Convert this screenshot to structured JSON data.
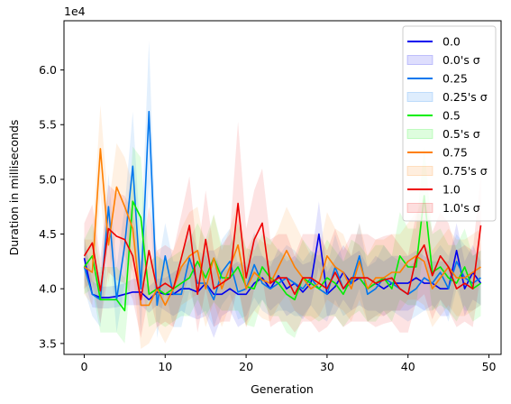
{
  "chart_data": {
    "type": "line",
    "title": "",
    "xlabel": "Generation",
    "ylabel": "Duration in milliseconds",
    "y_offset_label": "1e4",
    "xlim": [
      -2.5,
      51.5
    ],
    "ylim": [
      3.4,
      6.45
    ],
    "xticks": [
      0,
      10,
      20,
      30,
      40,
      50
    ],
    "yticks": [
      3.5,
      4.0,
      4.5,
      5.0,
      5.5,
      6.0
    ],
    "ytick_labels": [
      "3.5",
      "4.0",
      "4.5",
      "5.0",
      "5.5",
      "6.0"
    ],
    "legend_position": "upper-right",
    "x": [
      0,
      1,
      2,
      3,
      4,
      5,
      6,
      7,
      8,
      9,
      10,
      11,
      12,
      13,
      14,
      15,
      16,
      17,
      18,
      19,
      20,
      21,
      22,
      23,
      24,
      25,
      26,
      27,
      28,
      29,
      30,
      31,
      32,
      33,
      34,
      35,
      36,
      37,
      38,
      39,
      40,
      41,
      42,
      43,
      44,
      45,
      46,
      47,
      48,
      49
    ],
    "series": [
      {
        "name": "0.0",
        "band_label": "0.0's σ",
        "color": "#0000ee",
        "values": [
          4.28,
          3.95,
          3.92,
          3.92,
          3.93,
          3.95,
          3.97,
          3.97,
          3.9,
          3.97,
          3.95,
          3.95,
          4.0,
          4.0,
          3.97,
          4.05,
          3.95,
          3.95,
          4.0,
          3.95,
          3.95,
          4.05,
          4.1,
          4.0,
          4.12,
          4.0,
          4.05,
          3.97,
          4.05,
          4.5,
          3.95,
          4.02,
          4.15,
          4.05,
          4.1,
          4.0,
          4.05,
          4.0,
          4.05,
          4.05,
          4.05,
          4.1,
          4.05,
          4.05,
          4.0,
          4.0,
          4.35,
          4.0,
          4.15,
          4.05
        ],
        "sigma": [
          0.2,
          0.12,
          0.1,
          0.1,
          0.1,
          0.1,
          0.12,
          0.12,
          0.12,
          0.12,
          0.15,
          0.2,
          0.2,
          0.25,
          0.25,
          0.3,
          0.4,
          0.2,
          0.2,
          0.3,
          0.25,
          0.25,
          0.2,
          0.2,
          0.25,
          0.25,
          0.25,
          0.25,
          0.2,
          0.3,
          0.2,
          0.25,
          0.25,
          0.25,
          0.25,
          0.2,
          0.25,
          0.25,
          0.25,
          0.25,
          0.25,
          0.25,
          0.25,
          0.2,
          0.25,
          0.25,
          0.25,
          0.25,
          0.25,
          0.2
        ]
      },
      {
        "name": "0.25",
        "band_label": "0.25's σ",
        "color": "#0077ee",
        "values": [
          4.2,
          3.95,
          3.9,
          4.75,
          3.9,
          4.4,
          5.12,
          4.0,
          5.62,
          3.85,
          4.3,
          3.95,
          3.95,
          4.28,
          4.05,
          4.05,
          3.9,
          4.15,
          4.25,
          3.97,
          4.0,
          4.22,
          4.05,
          4.0,
          4.05,
          4.1,
          4.05,
          4.0,
          4.1,
          4.0,
          3.95,
          4.2,
          4.0,
          4.05,
          4.3,
          3.95,
          4.0,
          4.1,
          4.05,
          4.0,
          3.95,
          4.0,
          4.1,
          4.05,
          4.15,
          4.0,
          4.25,
          4.1,
          4.05,
          4.1
        ],
        "sigma": [
          0.2,
          0.2,
          0.25,
          0.3,
          0.3,
          0.35,
          0.5,
          0.4,
          0.65,
          0.3,
          0.3,
          0.3,
          0.3,
          0.3,
          0.3,
          0.25,
          0.25,
          0.3,
          0.3,
          0.25,
          0.25,
          0.3,
          0.25,
          0.25,
          0.25,
          0.3,
          0.3,
          0.25,
          0.25,
          0.25,
          0.25,
          0.3,
          0.25,
          0.25,
          0.3,
          0.25,
          0.25,
          0.3,
          0.25,
          0.25,
          0.25,
          0.25,
          0.3,
          0.25,
          0.25,
          0.3,
          0.25,
          0.3,
          0.25,
          0.25
        ]
      },
      {
        "name": "0.5",
        "band_label": "0.5's σ",
        "color": "#00ee00",
        "values": [
          4.2,
          4.3,
          3.9,
          3.9,
          3.9,
          3.8,
          4.8,
          4.65,
          3.95,
          4.0,
          3.95,
          4.0,
          4.05,
          4.1,
          4.25,
          4.1,
          4.28,
          4.1,
          4.1,
          4.2,
          4.02,
          4.0,
          4.2,
          4.1,
          4.05,
          3.95,
          3.9,
          4.1,
          4.05,
          4.0,
          4.1,
          4.05,
          3.95,
          4.1,
          4.1,
          4.0,
          4.05,
          4.1,
          4.0,
          4.3,
          4.2,
          4.2,
          4.85,
          4.15,
          4.2,
          4.1,
          4.05,
          4.2,
          4.0,
          4.05
        ],
        "sigma": [
          0.25,
          0.3,
          0.3,
          0.3,
          0.3,
          0.3,
          0.5,
          0.55,
          0.3,
          0.3,
          0.3,
          0.3,
          0.3,
          0.35,
          0.35,
          0.35,
          0.4,
          0.3,
          0.3,
          0.4,
          0.35,
          0.35,
          0.3,
          0.35,
          0.3,
          0.35,
          0.35,
          0.35,
          0.3,
          0.3,
          0.35,
          0.3,
          0.3,
          0.35,
          0.3,
          0.3,
          0.35,
          0.3,
          0.3,
          0.4,
          0.35,
          0.35,
          0.45,
          0.35,
          0.35,
          0.3,
          0.35,
          0.35,
          0.3,
          0.3
        ]
      },
      {
        "name": "0.75",
        "band_label": "0.75's σ",
        "color": "#ff7f00",
        "values": [
          4.2,
          4.15,
          5.28,
          4.4,
          4.93,
          4.75,
          4.55,
          3.85,
          3.85,
          4.0,
          3.85,
          4.0,
          4.2,
          4.3,
          4.35,
          4.0,
          4.28,
          4.0,
          4.2,
          4.4,
          4.0,
          4.15,
          4.08,
          4.05,
          4.2,
          4.35,
          4.2,
          4.1,
          4.0,
          4.05,
          4.3,
          4.2,
          4.15,
          4.0,
          4.25,
          4.0,
          4.1,
          4.1,
          4.15,
          4.15,
          4.25,
          4.3,
          4.25,
          4.0,
          4.1,
          4.2,
          4.1,
          4.1,
          4.15,
          4.2
        ],
        "sigma": [
          0.25,
          0.3,
          0.4,
          0.35,
          0.4,
          0.45,
          0.4,
          0.4,
          0.35,
          0.35,
          0.35,
          0.35,
          0.35,
          0.4,
          0.4,
          0.35,
          0.4,
          0.35,
          0.35,
          0.4,
          0.35,
          0.35,
          0.35,
          0.35,
          0.35,
          0.4,
          0.4,
          0.35,
          0.3,
          0.3,
          0.4,
          0.35,
          0.35,
          0.3,
          0.35,
          0.3,
          0.35,
          0.35,
          0.35,
          0.35,
          0.35,
          0.4,
          0.4,
          0.35,
          0.35,
          0.35,
          0.35,
          0.35,
          0.35,
          0.35
        ]
      },
      {
        "name": "1.0",
        "band_label": "1.0's σ",
        "color": "#ee0000",
        "values": [
          4.3,
          4.42,
          3.98,
          4.55,
          4.48,
          4.45,
          4.3,
          3.9,
          4.35,
          4.0,
          4.05,
          4.0,
          4.28,
          4.58,
          3.95,
          4.45,
          4.0,
          4.05,
          4.1,
          4.78,
          4.1,
          4.45,
          4.6,
          4.05,
          4.1,
          4.1,
          3.95,
          4.1,
          4.1,
          4.05,
          4.0,
          4.15,
          4.0,
          4.1,
          4.1,
          4.1,
          4.05,
          4.08,
          4.1,
          4.0,
          3.95,
          4.28,
          4.4,
          4.12,
          4.3,
          4.2,
          4.0,
          4.05,
          4.0,
          4.58
        ],
        "sigma": [
          0.3,
          0.35,
          0.3,
          0.4,
          0.4,
          0.4,
          0.4,
          0.35,
          0.4,
          0.35,
          0.35,
          0.35,
          0.4,
          0.45,
          0.35,
          0.45,
          0.35,
          0.35,
          0.4,
          0.75,
          0.45,
          0.45,
          0.5,
          0.4,
          0.4,
          0.4,
          0.35,
          0.4,
          0.4,
          0.45,
          0.35,
          0.4,
          0.35,
          0.4,
          0.4,
          0.4,
          0.4,
          0.4,
          0.4,
          0.4,
          0.35,
          0.4,
          0.45,
          0.4,
          0.4,
          0.4,
          0.35,
          0.35,
          0.35,
          0.45
        ]
      }
    ]
  }
}
